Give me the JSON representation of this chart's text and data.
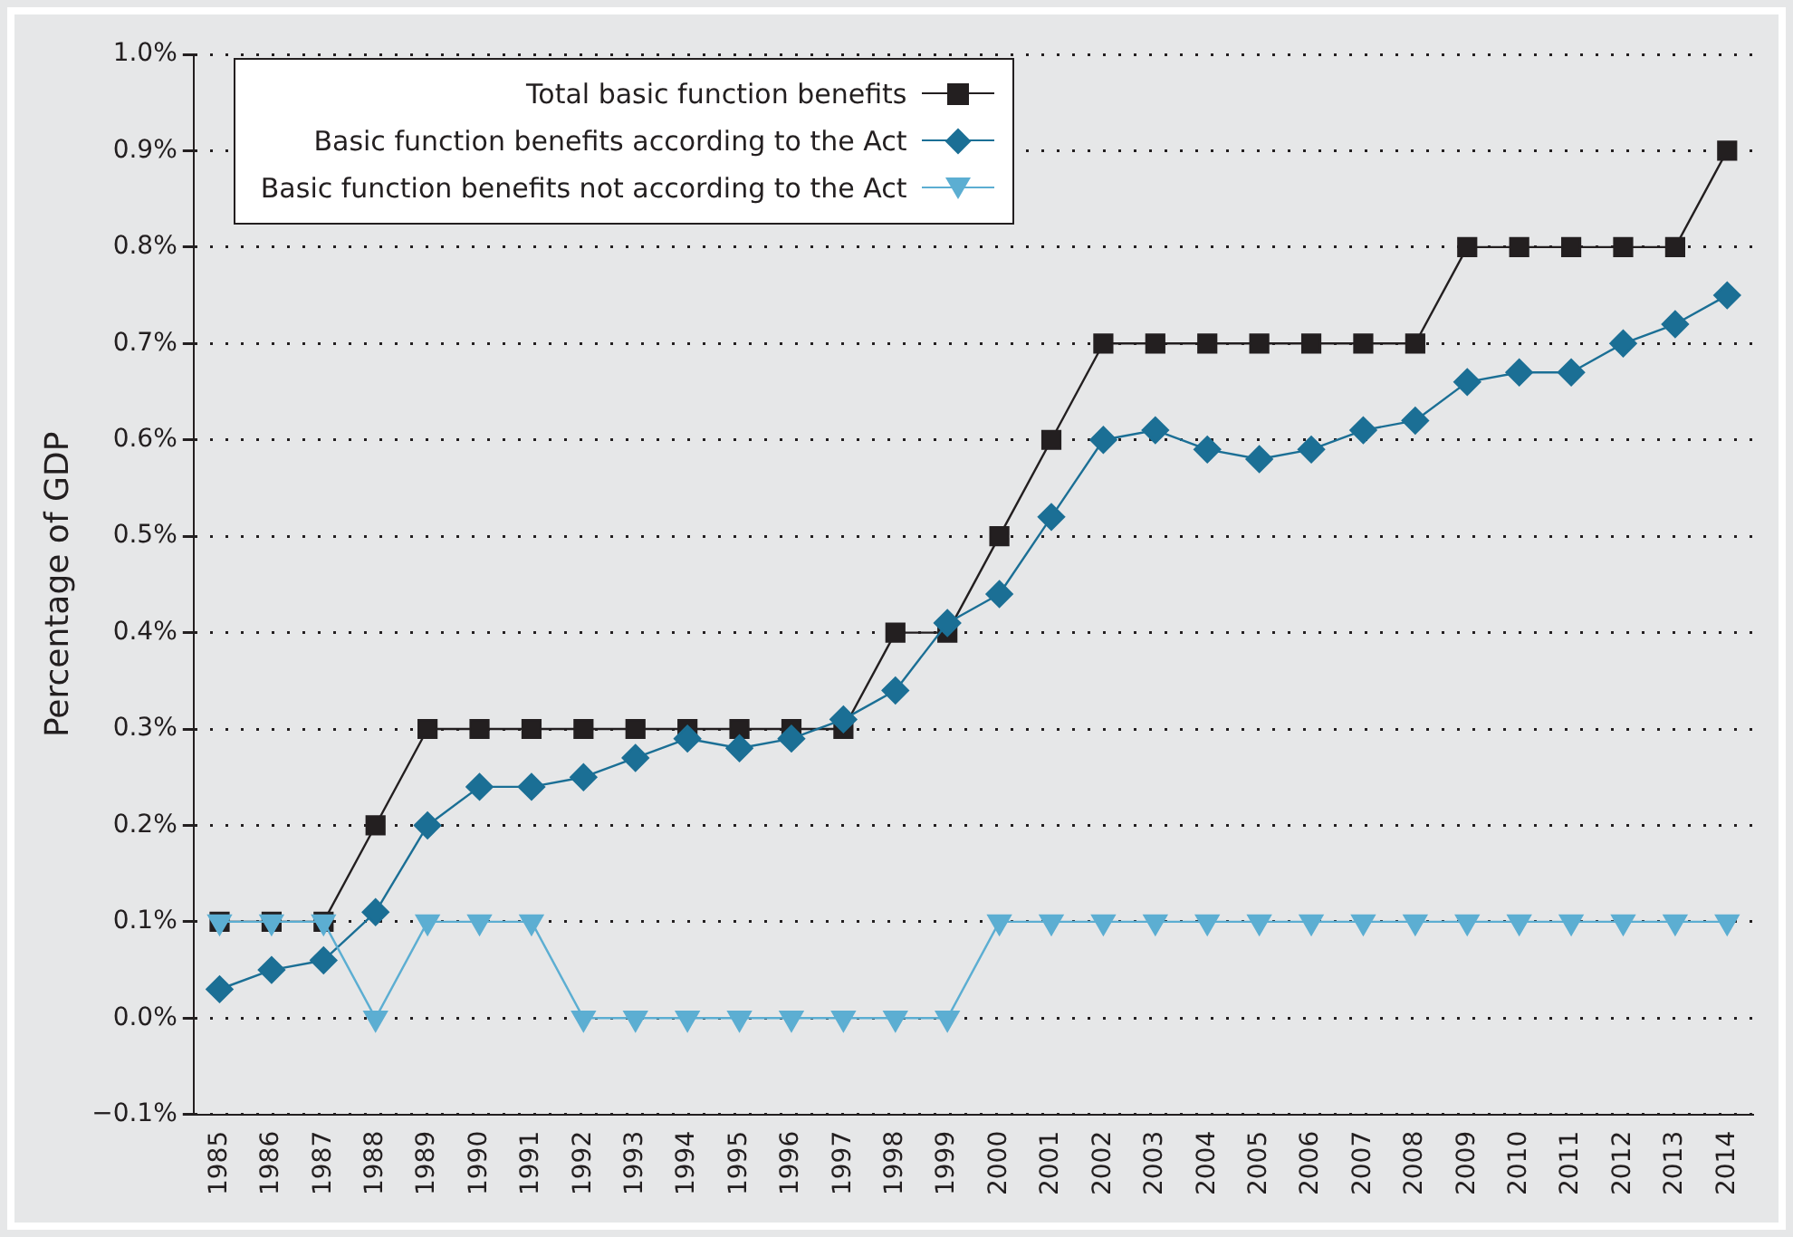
{
  "chart_data": {
    "type": "line",
    "ylabel": "Percentage of GDP",
    "categories": [
      "1985",
      "1986",
      "1987",
      "1988",
      "1989",
      "1990",
      "1991",
      "1992",
      "1993",
      "1994",
      "1995",
      "1996",
      "1997",
      "1998",
      "1999",
      "2000",
      "2001",
      "2002",
      "2003",
      "2004",
      "2005",
      "2006",
      "2007",
      "2008",
      "2009",
      "2010",
      "2011",
      "2012",
      "2013",
      "2014"
    ],
    "series": [
      {
        "name": "Total basic function benefits",
        "color": "#231f20",
        "marker": "square",
        "values": [
          0.1,
          0.1,
          0.1,
          0.2,
          0.3,
          0.3,
          0.3,
          0.3,
          0.3,
          0.3,
          0.3,
          0.3,
          0.3,
          0.4,
          0.4,
          0.5,
          0.6,
          0.7,
          0.7,
          0.7,
          0.7,
          0.7,
          0.7,
          0.7,
          0.8,
          0.8,
          0.8,
          0.8,
          0.8,
          0.9
        ]
      },
      {
        "name": "Basic function benefits according to the Act",
        "color": "#1b6f95",
        "marker": "diamond",
        "values": [
          0.03,
          0.05,
          0.06,
          0.11,
          0.2,
          0.24,
          0.24,
          0.25,
          0.27,
          0.29,
          0.28,
          0.29,
          0.31,
          0.34,
          0.41,
          0.44,
          0.52,
          0.6,
          0.61,
          0.59,
          0.58,
          0.59,
          0.61,
          0.62,
          0.66,
          0.67,
          0.67,
          0.7,
          0.72,
          0.75
        ]
      },
      {
        "name": "Basic function benefits not according to the Act",
        "color": "#5caed2",
        "marker": "triangle",
        "values": [
          0.1,
          0.1,
          0.1,
          0,
          0.1,
          0.1,
          0.1,
          0,
          0,
          0,
          0,
          0,
          0,
          0,
          0,
          0.1,
          0.1,
          0.1,
          0.1,
          0.1,
          0.1,
          0.1,
          0.1,
          0.1,
          0.1,
          0.1,
          0.1,
          0.1,
          0.1,
          0.1
        ]
      }
    ],
    "ylim": [
      -0.1,
      1.0
    ],
    "yticks": [
      {
        "value": -0.1,
        "label": "−0.1%"
      },
      {
        "value": 0,
        "label": "0.0%"
      },
      {
        "value": 0.1,
        "label": "0.1%"
      },
      {
        "value": 0.2,
        "label": "0.2%"
      },
      {
        "value": 0.3,
        "label": "0.3%"
      },
      {
        "value": 0.4,
        "label": "0.4%"
      },
      {
        "value": 0.5,
        "label": "0.5%"
      },
      {
        "value": 0.6,
        "label": "0.6%"
      },
      {
        "value": 0.7,
        "label": "0.7%"
      },
      {
        "value": 0.8,
        "label": "0.8%"
      },
      {
        "value": 0.9,
        "label": "0.9%"
      },
      {
        "value": 1.0,
        "label": "1.0%"
      }
    ],
    "grid": "y",
    "legend": "top left",
    "line_style": "solid"
  }
}
